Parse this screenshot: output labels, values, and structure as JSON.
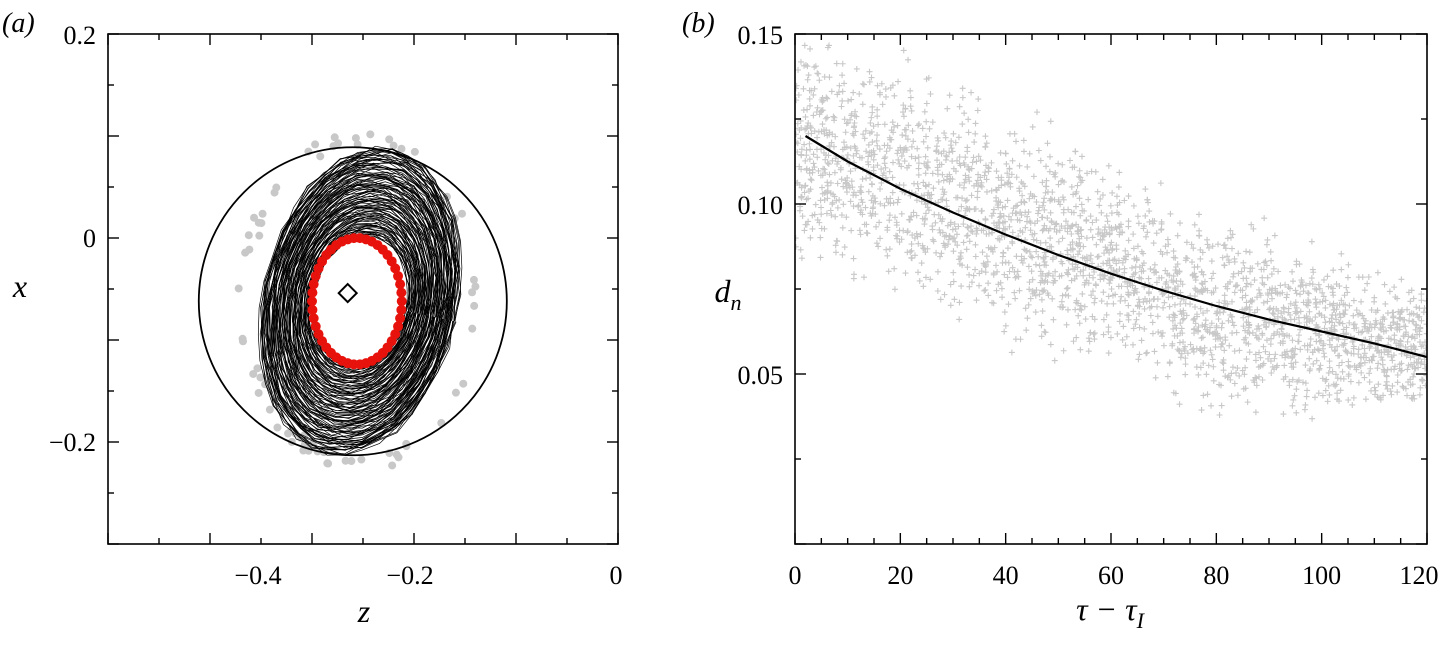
{
  "panels": {
    "a": {
      "label": "(a)",
      "xlabel": "z",
      "ylabel": "x",
      "xticks": [
        "−0.4",
        "−0.2",
        "0"
      ],
      "yticks": [
        "0.2",
        "0",
        "−0.2"
      ]
    },
    "b": {
      "label": "(b)",
      "xlabel": "τ − τ",
      "xlabel_sub": "I",
      "ylabel": "d",
      "ylabel_sub": "n",
      "xticks": [
        "0",
        "20",
        "40",
        "60",
        "80",
        "100",
        "120"
      ],
      "yticks": [
        "0.15",
        "0.10",
        "0.05"
      ]
    }
  },
  "colors": {
    "axes": "#000000",
    "scatter_gray": "#c8c8c8",
    "red_markers": "#e8120c",
    "fit_line": "#000000",
    "trajectory": "#000000"
  },
  "chart_data": [
    {
      "type": "scatter",
      "panel": "a",
      "title": "",
      "xlabel": "z",
      "ylabel": "x",
      "xlim": [
        -0.5,
        0.0
      ],
      "ylim": [
        -0.3,
        0.2
      ],
      "outer_circle": {
        "center": [
          -0.26,
          -0.062
        ],
        "radius": 0.151
      },
      "diamond_marker": {
        "z": -0.265,
        "x": -0.054
      },
      "red_ring": {
        "center": [
          -0.256,
          -0.062
        ],
        "semi_axis_z": 0.044,
        "semi_axis_x": 0.062
      },
      "trajectory_band": {
        "center": [
          -0.253,
          -0.062
        ],
        "inner_semi_z": 0.046,
        "inner_semi_x": 0.064,
        "outer_semi_z": 0.095,
        "outer_semi_x": 0.152,
        "tilt_deg": -12
      },
      "gray_ring": {
        "center": [
          -0.254,
          -0.062
        ],
        "semi_axis_z": 0.112,
        "semi_axis_x": 0.158
      }
    },
    {
      "type": "scatter",
      "panel": "b",
      "title": "",
      "xlabel": "τ − τI",
      "ylabel": "dn",
      "xlim": [
        0,
        120
      ],
      "ylim": [
        0,
        0.15
      ],
      "series": [
        {
          "kind": "scatter",
          "band_upper": [
            [
              0,
              0.15
            ],
            [
              20,
              0.14
            ],
            [
              40,
              0.125
            ],
            [
              60,
              0.11
            ],
            [
              80,
              0.095
            ],
            [
              100,
              0.085
            ],
            [
              120,
              0.075
            ]
          ],
          "band_lower": [
            [
              0,
              0.085
            ],
            [
              20,
              0.075
            ],
            [
              40,
              0.065
            ],
            [
              60,
              0.055
            ],
            [
              80,
              0.04
            ],
            [
              100,
              0.04
            ],
            [
              120,
              0.04
            ]
          ]
        },
        {
          "kind": "line",
          "x": [
            2,
            10,
            20,
            30,
            40,
            50,
            60,
            70,
            80,
            90,
            100,
            110,
            120
          ],
          "y": [
            0.12,
            0.1125,
            0.1045,
            0.0975,
            0.091,
            0.085,
            0.0795,
            0.0745,
            0.07,
            0.066,
            0.0625,
            0.059,
            0.055
          ]
        }
      ]
    }
  ]
}
